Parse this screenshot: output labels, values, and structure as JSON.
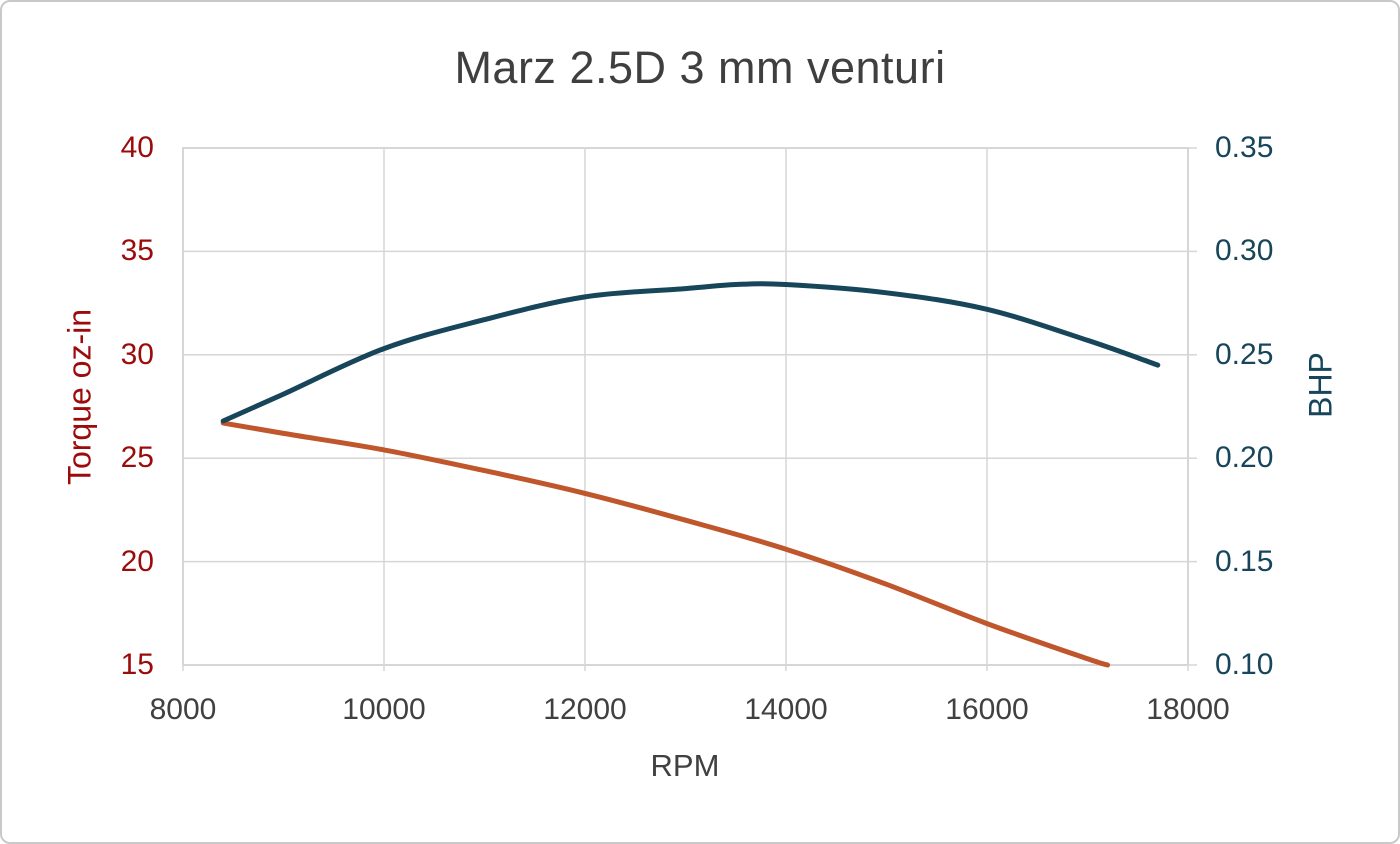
{
  "page": {
    "background_color": "#ffffff",
    "border_color": "#c9c9c9",
    "title_color": "#3f3f3f",
    "grid_color": "#d6d6d6"
  },
  "chart_data": {
    "type": "line",
    "title": "Marz 2.5D 3 mm venturi",
    "legend": "none",
    "grid": true,
    "x_axis": {
      "label": "RPM",
      "min": 8000,
      "max": 18000,
      "ticks": [
        "8000",
        "10000",
        "12000",
        "14000",
        "16000",
        "18000"
      ],
      "tick_values": [
        8000,
        10000,
        12000,
        14000,
        16000,
        18000
      ],
      "text_color": "#404040"
    },
    "left_axis": {
      "label": "Torque oz-in",
      "min": 15,
      "max": 40,
      "ticks": [
        "40",
        "35",
        "30",
        "25",
        "20",
        "15"
      ],
      "tick_values": [
        40,
        35,
        30,
        25,
        20,
        15
      ],
      "text_color": "#9c0b0b"
    },
    "right_axis": {
      "label": "BHP",
      "min": 0.1,
      "max": 0.35,
      "ticks": [
        "0.35",
        "0.30",
        "0.25",
        "0.20",
        "0.15",
        "0.10"
      ],
      "tick_values": [
        0.35,
        0.3,
        0.25,
        0.2,
        0.15,
        0.1
      ],
      "text_color": "#17465b"
    },
    "series": [
      {
        "name": "Torque",
        "axis": "left",
        "color": "#c0562b",
        "line_width": 5,
        "x": [
          8400,
          9000,
          10000,
          11000,
          12000,
          13000,
          14000,
          15000,
          16000,
          17000,
          17200
        ],
        "y": [
          26.7,
          26.2,
          25.4,
          24.4,
          23.3,
          22.0,
          20.6,
          18.9,
          17.0,
          15.3,
          15.0
        ]
      },
      {
        "name": "BHP",
        "axis": "right",
        "color": "#17465b",
        "line_width": 5,
        "x": [
          8400,
          9000,
          10000,
          11000,
          12000,
          13000,
          13500,
          14000,
          15000,
          16000,
          17000,
          17700
        ],
        "y": [
          0.218,
          0.231,
          0.253,
          0.267,
          0.278,
          0.282,
          0.284,
          0.284,
          0.28,
          0.272,
          0.257,
          0.245
        ]
      }
    ]
  }
}
